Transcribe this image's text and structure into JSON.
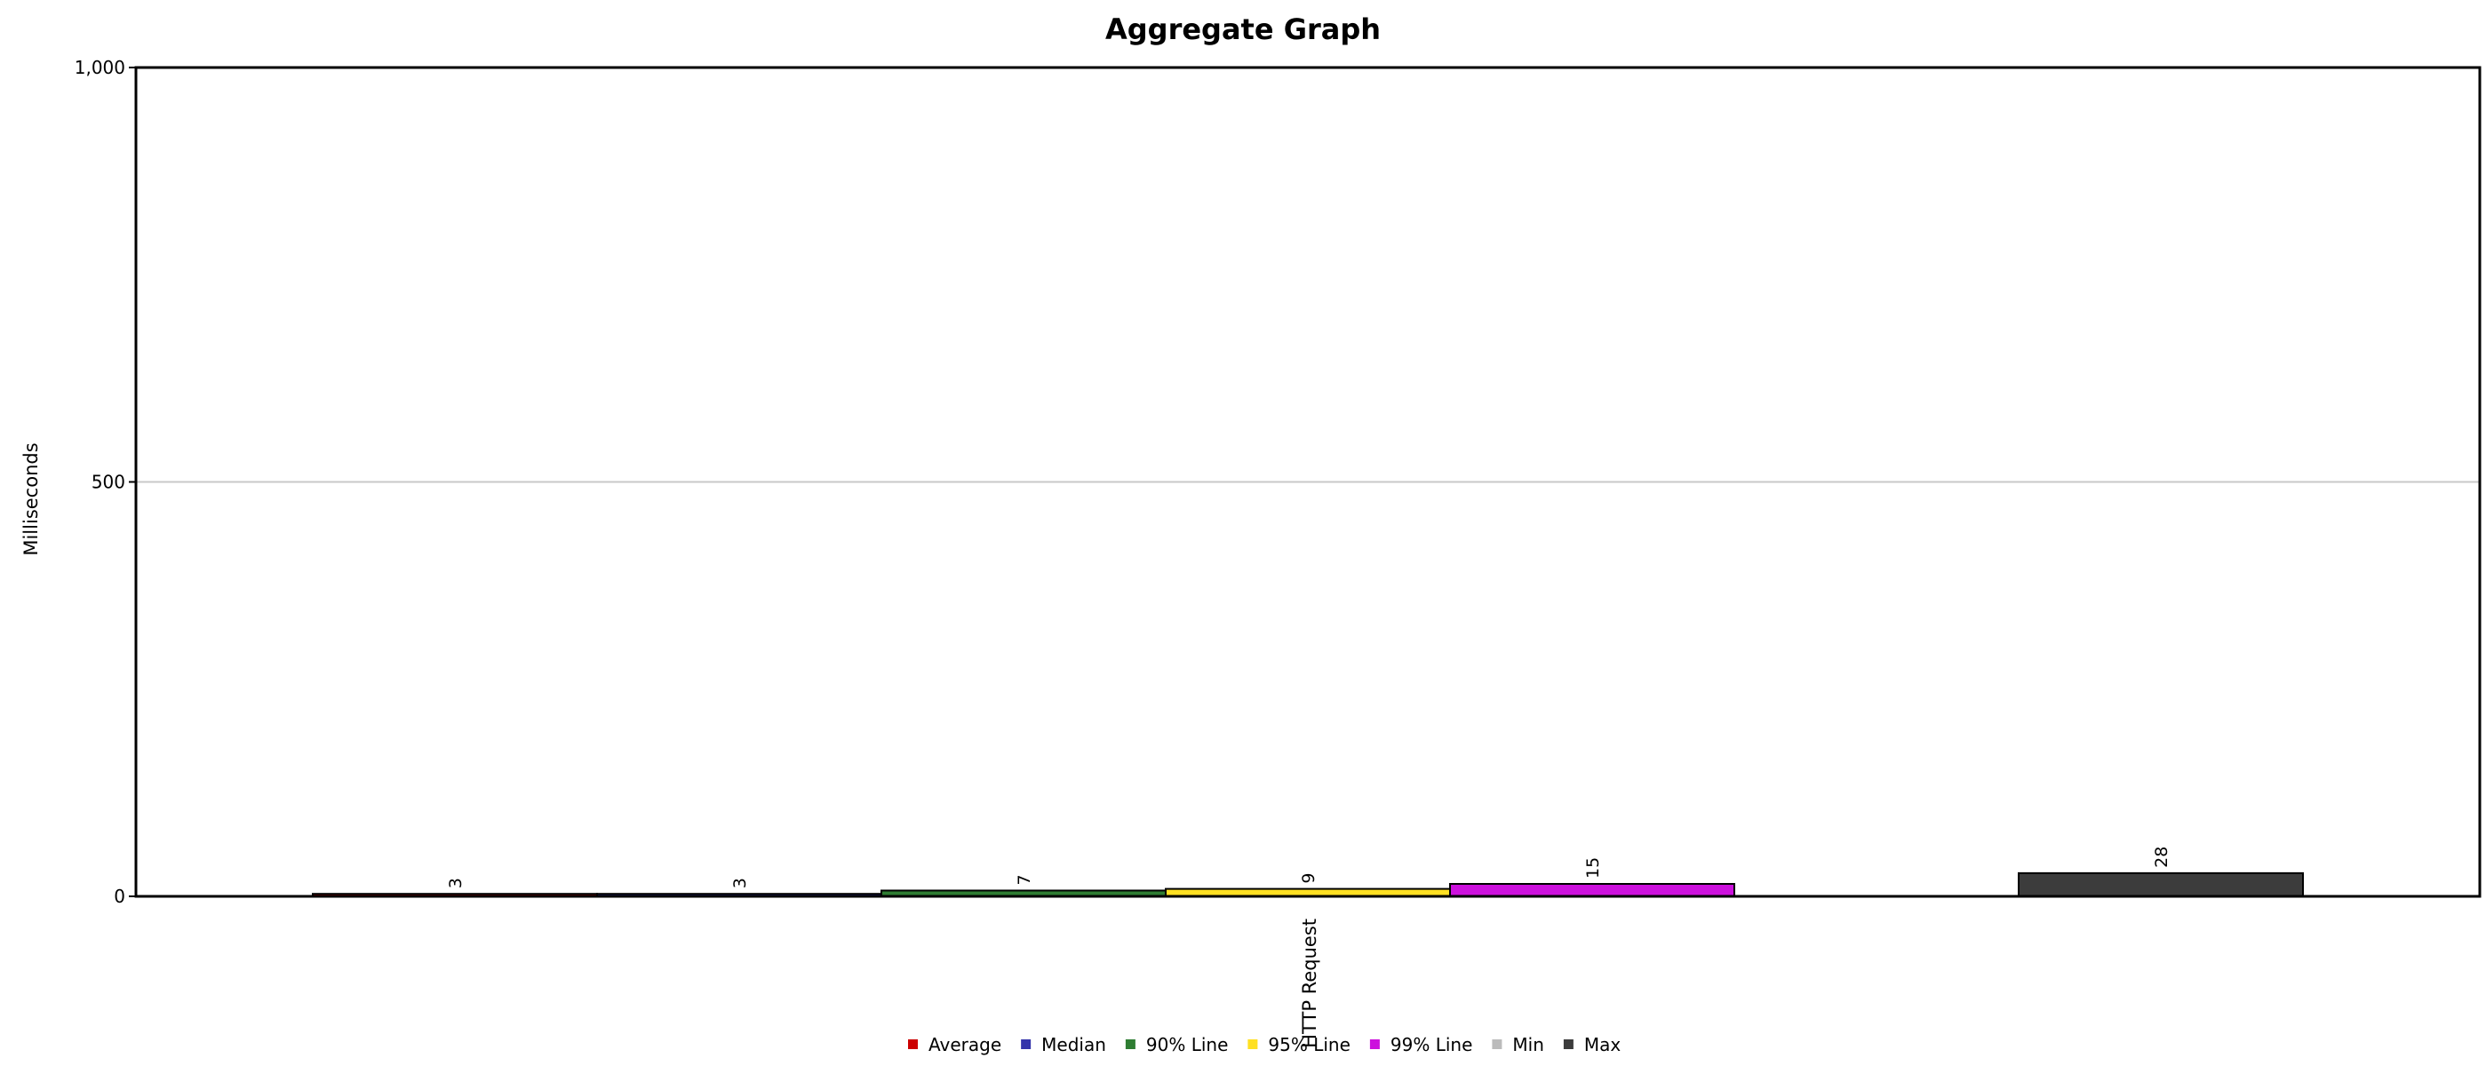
{
  "chart_data": {
    "type": "bar",
    "title": "Aggregate Graph",
    "xlabel": "",
    "ylabel": "Milliseconds",
    "categories": [
      "HTTP Request"
    ],
    "ylim": [
      0,
      1000
    ],
    "yticks": [
      {
        "value": 0,
        "label": "0"
      },
      {
        "value": 500,
        "label": "500"
      },
      {
        "value": 1000,
        "label": "1,000"
      }
    ],
    "grid": true,
    "legend_position": "bottom",
    "series": [
      {
        "name": "Average",
        "color": "#cc0000",
        "values": [
          3
        ],
        "label": "3"
      },
      {
        "name": "Median",
        "color": "#3333aa",
        "values": [
          3
        ],
        "label": "3"
      },
      {
        "name": "90% Line",
        "color": "#2e7d32",
        "values": [
          7
        ],
        "label": "7"
      },
      {
        "name": "95% Line",
        "color": "#ffe022",
        "values": [
          9
        ],
        "label": "9"
      },
      {
        "name": "99% Line",
        "color": "#cc11dd",
        "values": [
          15
        ],
        "label": "15"
      },
      {
        "name": "Min",
        "color": "#bbbbbb",
        "values": [
          0
        ],
        "label": ""
      },
      {
        "name": "Max",
        "color": "#3c3c3c",
        "values": [
          28
        ],
        "label": "28"
      }
    ]
  }
}
